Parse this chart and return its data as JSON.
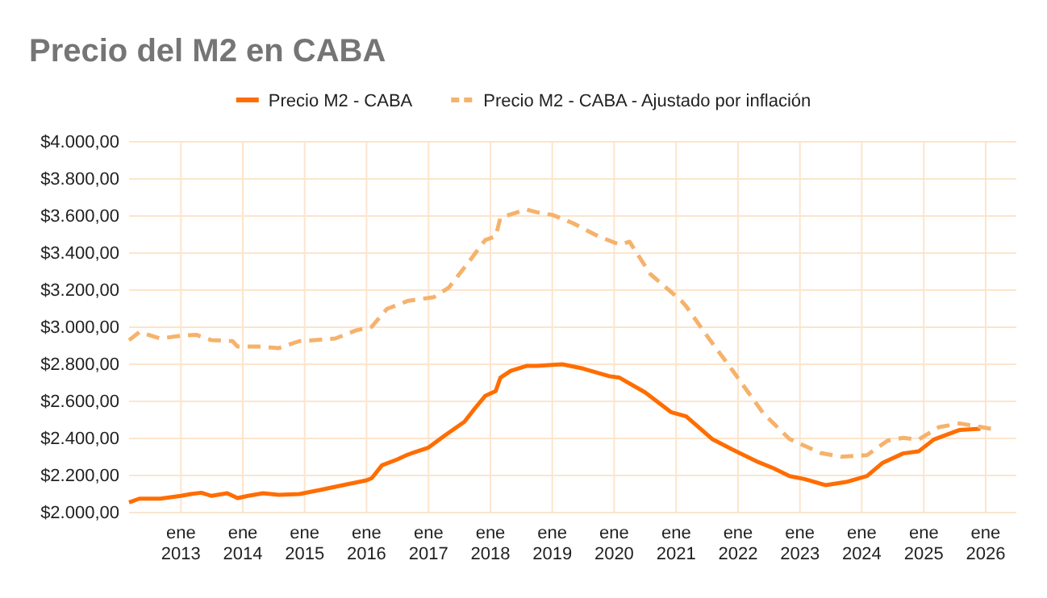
{
  "chart_data": {
    "type": "line",
    "title": "Precio del M2 en CABA",
    "xlim": [
      "2012-03",
      "2026-07"
    ],
    "xticks": [
      {
        "value": "2013-01",
        "label": "ene 2013"
      },
      {
        "value": "2014-01",
        "label": "ene 2014"
      },
      {
        "value": "2015-01",
        "label": "ene 2015"
      },
      {
        "value": "2016-01",
        "label": "ene 2016"
      },
      {
        "value": "2017-01",
        "label": "ene 2017"
      },
      {
        "value": "2018-01",
        "label": "ene 2018"
      },
      {
        "value": "2019-01",
        "label": "ene 2019"
      },
      {
        "value": "2020-01",
        "label": "ene 2020"
      },
      {
        "value": "2021-01",
        "label": "ene 2021"
      },
      {
        "value": "2022-01",
        "label": "ene 2022"
      },
      {
        "value": "2023-01",
        "label": "ene 2023"
      },
      {
        "value": "2024-01",
        "label": "ene 2024"
      },
      {
        "value": "2025-01",
        "label": "ene 2025"
      },
      {
        "value": "2026-01",
        "label": "ene 2026"
      }
    ],
    "ylim": [
      2000,
      4000
    ],
    "yticks": [
      {
        "value": 2000,
        "label": "$2.000,00"
      },
      {
        "value": 2200,
        "label": "$2.200,00"
      },
      {
        "value": 2400,
        "label": "$2.400,00"
      },
      {
        "value": 2600,
        "label": "$2.600,00"
      },
      {
        "value": 2800,
        "label": "$2.800,00"
      },
      {
        "value": 3000,
        "label": "$3.000,00"
      },
      {
        "value": 3200,
        "label": "$3.200,00"
      },
      {
        "value": 3400,
        "label": "$3.400,00"
      },
      {
        "value": 3600,
        "label": "$3.600,00"
      },
      {
        "value": 3800,
        "label": "$3.800,00"
      },
      {
        "value": 4000,
        "label": "$4.000,00"
      }
    ],
    "grid": true,
    "legend": "top",
    "marker": "none",
    "series": [
      {
        "name": "Precio M2 - CABA",
        "color": "#ff6d01",
        "line_style": "solid",
        "x": [
          "2012-03",
          "2012-05",
          "2012-09",
          "2013-01",
          "2013-03",
          "2013-05",
          "2013-07",
          "2013-10",
          "2013-12",
          "2014-02",
          "2014-05",
          "2014-08",
          "2014-12",
          "2015-04",
          "2015-09",
          "2016-01",
          "2016-02",
          "2016-04",
          "2016-07",
          "2016-09",
          "2017-01",
          "2017-04",
          "2017-08",
          "2017-10",
          "2017-12",
          "2018-02",
          "2018-03",
          "2018-05",
          "2018-08",
          "2018-10",
          "2019-01",
          "2019-03",
          "2019-07",
          "2019-12",
          "2020-02",
          "2020-07",
          "2020-12",
          "2021-03",
          "2021-08",
          "2021-12",
          "2022-05",
          "2022-08",
          "2022-11",
          "2023-02",
          "2023-06",
          "2023-10",
          "2024-02",
          "2024-05",
          "2024-09",
          "2024-12",
          "2025-03",
          "2025-08",
          "2025-12"
        ],
        "values": [
          2055,
          2075,
          2075,
          2090,
          2100,
          2107,
          2090,
          2104,
          2078,
          2090,
          2104,
          2096,
          2100,
          2122,
          2151,
          2174,
          2186,
          2255,
          2287,
          2313,
          2351,
          2412,
          2490,
          2562,
          2629,
          2655,
          2728,
          2765,
          2791,
          2791,
          2797,
          2800,
          2777,
          2736,
          2728,
          2649,
          2542,
          2519,
          2397,
          2339,
          2272,
          2238,
          2197,
          2180,
          2148,
          2165,
          2197,
          2267,
          2319,
          2330,
          2394,
          2446,
          2452
        ]
      },
      {
        "name": "Precio M2 - CABA - Ajustado por inflación",
        "color": "#f6b26b",
        "line_style": "dashed",
        "x": [
          "2012-03",
          "2012-05",
          "2012-09",
          "2013-01",
          "2013-04",
          "2013-07",
          "2013-11",
          "2013-12",
          "2014-04",
          "2014-08",
          "2014-12",
          "2015-03",
          "2015-07",
          "2015-11",
          "2016-02",
          "2016-05",
          "2016-09",
          "2017-02",
          "2017-05",
          "2017-09",
          "2017-12",
          "2018-02",
          "2018-03",
          "2018-08",
          "2018-10",
          "2019-01",
          "2019-05",
          "2019-10",
          "2020-02",
          "2020-04",
          "2020-08",
          "2021-02",
          "2021-03",
          "2021-07",
          "2021-12",
          "2022-06",
          "2022-11",
          "2023-05",
          "2023-09",
          "2024-02",
          "2024-06",
          "2024-09",
          "2024-12",
          "2025-04",
          "2025-08",
          "2026-02"
        ],
        "values": [
          2930,
          2974,
          2939,
          2954,
          2959,
          2930,
          2925,
          2896,
          2896,
          2887,
          2925,
          2930,
          2939,
          2983,
          3003,
          3099,
          3142,
          3162,
          3214,
          3359,
          3470,
          3490,
          3591,
          3635,
          3620,
          3606,
          3562,
          3490,
          3446,
          3461,
          3287,
          3142,
          3113,
          2954,
          2765,
          2533,
          2397,
          2322,
          2301,
          2310,
          2388,
          2403,
          2394,
          2461,
          2481,
          2452
        ]
      }
    ]
  }
}
